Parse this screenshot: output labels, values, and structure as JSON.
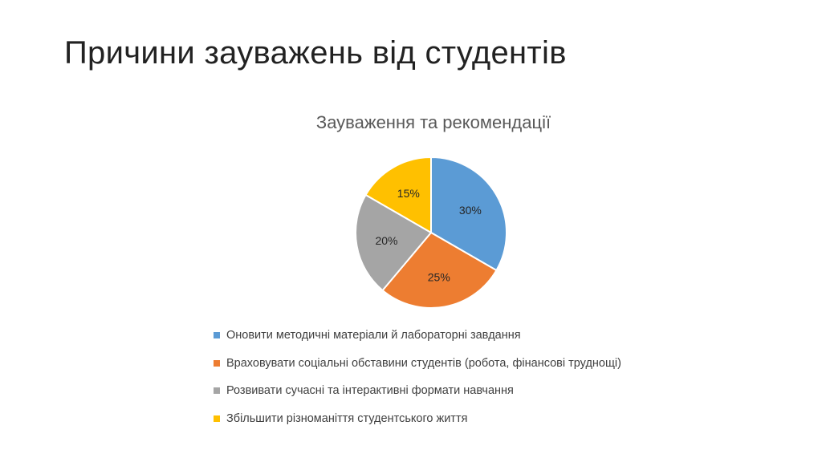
{
  "slide": {
    "title": "Причини зауважень від студентів"
  },
  "chart_data": {
    "type": "pie",
    "title": "Зауваження та рекомендації",
    "categories": [
      "Оновити методичні матеріали й лабораторні завдання",
      "Враховувати соціальні обставини студентів (робота, фінансові труднощі)",
      "Розвивати сучасні та інтерактивні формати навчання",
      "Збільшити різноманіття студентського життя"
    ],
    "values": [
      30,
      25,
      20,
      15
    ],
    "data_labels": [
      "30%",
      "25%",
      "20%",
      "15%"
    ],
    "colors": [
      "#5B9BD5",
      "#ED7D31",
      "#A5A5A5",
      "#FFC000"
    ],
    "legend_position": "bottom"
  }
}
